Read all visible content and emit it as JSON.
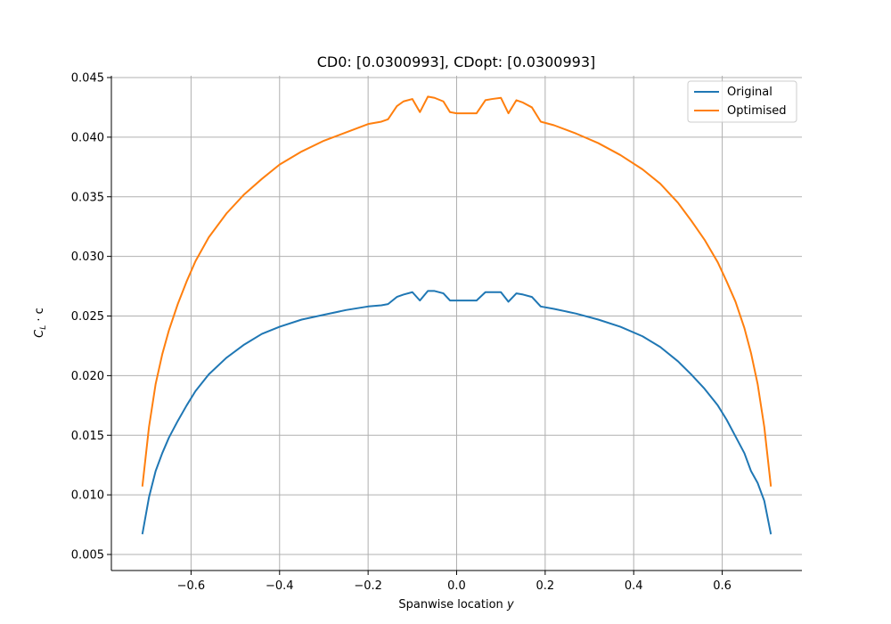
{
  "chart_data": {
    "type": "line",
    "title": "CD0: [0.0300993], CDopt: [0.0300993]",
    "xlabel": "Spanwise location y",
    "xlabel_parts": {
      "text": "Spanwise location ",
      "var": "y"
    },
    "ylabel": "C_L · c",
    "ylabel_parts": {
      "main": "C",
      "sub": "L",
      "rest": " · c"
    },
    "xlim": [
      -0.78,
      0.78
    ],
    "ylim": [
      0.005,
      0.045
    ],
    "grid": true,
    "legend": "top-right",
    "x_ticks": [
      -0.6,
      -0.4,
      -0.2,
      0.0,
      0.2,
      0.4,
      0.6
    ],
    "x_tick_labels": [
      "−0.6",
      "−0.4",
      "−0.2",
      "0.0",
      "0.2",
      "0.4",
      "0.6"
    ],
    "y_ticks": [
      0.005,
      0.01,
      0.015,
      0.02,
      0.025,
      0.03,
      0.035,
      0.04,
      0.045
    ],
    "y_tick_labels": [
      "0.005",
      "0.010",
      "0.015",
      "0.020",
      "0.025",
      "0.030",
      "0.035",
      "0.040",
      "0.045"
    ],
    "series": [
      {
        "name": "Original",
        "color": "#1f77b4",
        "x": [
          -0.71,
          -0.695,
          -0.68,
          -0.665,
          -0.65,
          -0.63,
          -0.61,
          -0.59,
          -0.56,
          -0.52,
          -0.48,
          -0.44,
          -0.4,
          -0.35,
          -0.3,
          -0.25,
          -0.2,
          -0.17,
          -0.155,
          -0.135,
          -0.12,
          -0.1,
          -0.083,
          -0.065,
          -0.05,
          -0.03,
          -0.015,
          0.0,
          0.02,
          0.045,
          0.065,
          0.08,
          0.1,
          0.117,
          0.135,
          0.15,
          0.17,
          0.19,
          0.22,
          0.27,
          0.32,
          0.37,
          0.42,
          0.46,
          0.5,
          0.53,
          0.56,
          0.59,
          0.61,
          0.63,
          0.65,
          0.665,
          0.68,
          0.695,
          0.71
        ],
        "y": [
          0.0067,
          0.0098,
          0.012,
          0.0135,
          0.0148,
          0.0162,
          0.0175,
          0.0187,
          0.0201,
          0.0215,
          0.0226,
          0.0235,
          0.0241,
          0.0247,
          0.0251,
          0.0255,
          0.0258,
          0.0259,
          0.026,
          0.0266,
          0.0268,
          0.027,
          0.0263,
          0.0271,
          0.0271,
          0.0269,
          0.0263,
          0.0263,
          0.0263,
          0.0263,
          0.027,
          0.027,
          0.027,
          0.0262,
          0.0269,
          0.0268,
          0.0266,
          0.0258,
          0.0256,
          0.0252,
          0.0247,
          0.0241,
          0.0233,
          0.0224,
          0.0212,
          0.0201,
          0.0189,
          0.0175,
          0.0163,
          0.0149,
          0.0135,
          0.012,
          0.011,
          0.0095,
          0.0067
        ]
      },
      {
        "name": "Optimised",
        "color": "#ff7f0e",
        "x": [
          -0.71,
          -0.695,
          -0.68,
          -0.665,
          -0.65,
          -0.63,
          -0.61,
          -0.59,
          -0.56,
          -0.52,
          -0.48,
          -0.44,
          -0.4,
          -0.35,
          -0.3,
          -0.25,
          -0.2,
          -0.17,
          -0.155,
          -0.135,
          -0.12,
          -0.1,
          -0.083,
          -0.065,
          -0.05,
          -0.03,
          -0.015,
          0.0,
          0.02,
          0.045,
          0.065,
          0.08,
          0.1,
          0.117,
          0.135,
          0.15,
          0.17,
          0.19,
          0.22,
          0.27,
          0.32,
          0.37,
          0.42,
          0.46,
          0.5,
          0.53,
          0.56,
          0.59,
          0.61,
          0.63,
          0.65,
          0.665,
          0.68,
          0.695,
          0.71
        ],
        "y": [
          0.0107,
          0.0157,
          0.0193,
          0.0218,
          0.0238,
          0.026,
          0.0279,
          0.0296,
          0.0316,
          0.0336,
          0.0352,
          0.0365,
          0.0377,
          0.0388,
          0.0397,
          0.0404,
          0.0411,
          0.0413,
          0.0415,
          0.0426,
          0.043,
          0.0432,
          0.0421,
          0.0434,
          0.0433,
          0.043,
          0.0421,
          0.042,
          0.042,
          0.042,
          0.0431,
          0.0432,
          0.0433,
          0.042,
          0.0431,
          0.0429,
          0.0425,
          0.0413,
          0.041,
          0.0403,
          0.0395,
          0.0385,
          0.0373,
          0.0361,
          0.0345,
          0.033,
          0.0314,
          0.0295,
          0.0279,
          0.0262,
          0.024,
          0.0219,
          0.0193,
          0.0157,
          0.0107
        ]
      }
    ]
  }
}
